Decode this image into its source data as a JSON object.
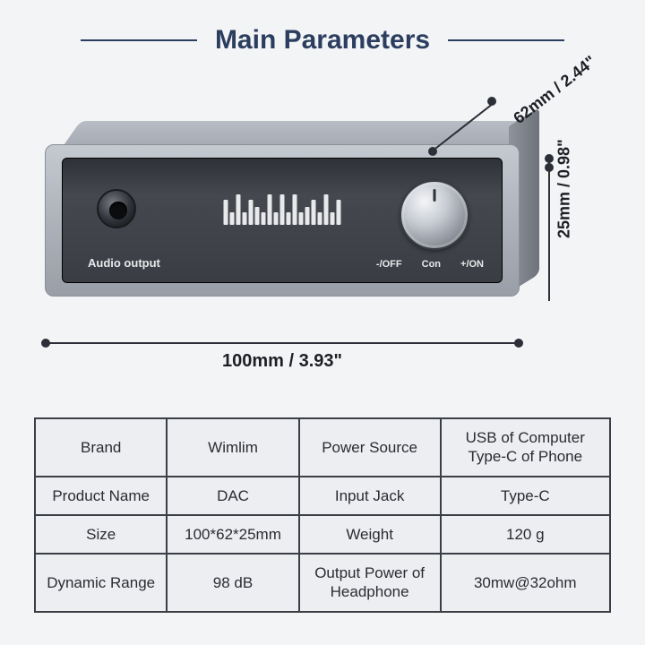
{
  "title": "Main Parameters",
  "device": {
    "audio_output_label": "Audio output",
    "knob_labels": {
      "left": "-/OFF",
      "center": "Con",
      "right": "+/ON"
    },
    "logo_bar_heights": [
      28,
      14,
      34,
      14,
      28,
      20,
      14,
      34,
      14,
      34,
      14,
      34,
      14,
      20,
      28,
      14,
      34,
      14,
      28
    ],
    "logo_bar_color": "#e8e9eb",
    "front_gradient": [
      "#c5c9d0",
      "#b2b6bf",
      "#999ea7"
    ],
    "panel_gradient": [
      "#2e3138",
      "#45484f",
      "#3a3d44"
    ]
  },
  "dimensions": {
    "width": "100mm / 3.93\"",
    "depth": "62mm / 2.44\"",
    "height": "25mm / 0.98\"",
    "line_color": "#2c2f38"
  },
  "table": {
    "border_color": "#3b3e45",
    "bg_color": "#eceef2",
    "rows": [
      {
        "k1": "Brand",
        "v1": "Wimlim",
        "k2": "Power Source",
        "v2": "USB of Computer\nType-C of Phone"
      },
      {
        "k1": "Product Name",
        "v1": "DAC",
        "k2": "Input  Jack",
        "v2": "Type-C"
      },
      {
        "k1": "Size",
        "v1": "100*62*25mm",
        "k2": "Weight",
        "v2": "120 g"
      },
      {
        "k1": "Dynamic Range",
        "v1": "98 dB",
        "k2": "Output Power of Headphone",
        "v2": "30mw@32ohm"
      }
    ]
  },
  "colors": {
    "page_bg": "#f3f4f6",
    "title_color": "#2c3e5f"
  }
}
